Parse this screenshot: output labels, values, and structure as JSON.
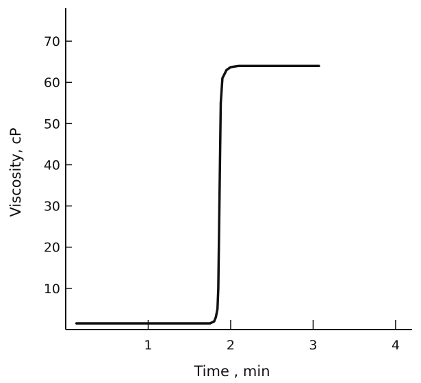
{
  "chart_data": {
    "type": "line",
    "xlabel": "Time , min",
    "ylabel": "Viscosity, cP",
    "xlim": [
      0,
      4.2
    ],
    "ylim": [
      0,
      78
    ],
    "x_ticks": [
      1,
      2,
      3,
      4
    ],
    "x_tick_labels": [
      "1",
      "2",
      "3",
      "4"
    ],
    "y_ticks": [
      10,
      20,
      30,
      40,
      50,
      60,
      70
    ],
    "y_tick_labels": [
      "10",
      "20",
      "30",
      "40",
      "50",
      "60",
      "70"
    ],
    "grid": false,
    "line_color": "#111111",
    "series": [
      {
        "x": [
          0.13,
          0.5,
          1.0,
          1.5,
          1.75,
          1.8,
          1.82,
          1.84,
          1.85,
          1.86,
          1.87,
          1.88,
          1.9,
          1.95,
          2.0,
          2.1,
          2.3,
          2.6,
          3.0,
          3.07
        ],
        "y": [
          1.5,
          1.5,
          1.5,
          1.5,
          1.5,
          2,
          3,
          5,
          10,
          25,
          40,
          55,
          61,
          63,
          63.7,
          64,
          64,
          64,
          64,
          64
        ]
      }
    ]
  }
}
